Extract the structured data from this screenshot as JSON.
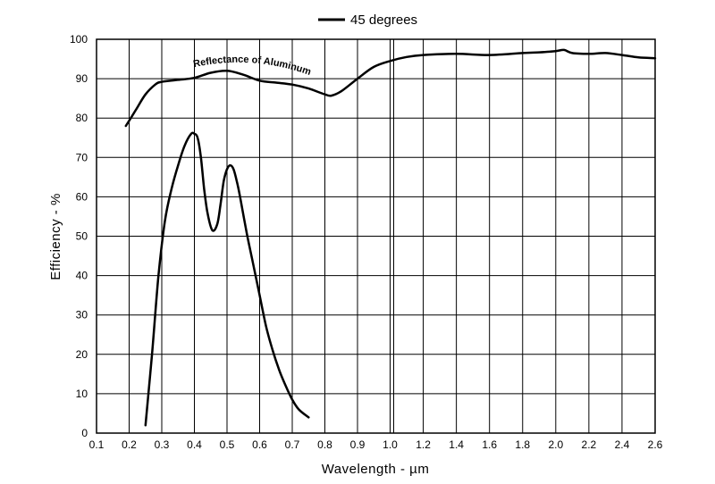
{
  "chart_data": {
    "type": "line",
    "title": "",
    "xlabel": "Wavelength - µm",
    "ylabel": "Efficiency - %",
    "ylim": [
      0,
      100
    ],
    "grid": true,
    "legend_position": "top-center",
    "x_tick_labels": [
      "0.1",
      "0.2",
      "0.3",
      "0.4",
      "0.5",
      "0.6",
      "0.7",
      "0.8",
      "0.9",
      "1.0",
      "1.2",
      "1.4",
      "1.6",
      "1.8",
      "2.0",
      "2.2",
      "2.4",
      "2.6"
    ],
    "x_axis_note": "piecewise axis: step 0.1 from 0.1 to 1.0, then step 0.2 from 1.0 to 2.6",
    "y_ticks": [
      0,
      10,
      20,
      30,
      40,
      50,
      60,
      70,
      80,
      90,
      100
    ],
    "legend": [
      {
        "label": "45 degrees",
        "series": "efficiency_45deg"
      }
    ],
    "annotations": [
      {
        "text": "Reflectance of Aluminum",
        "series": "reflectance_aluminum"
      }
    ],
    "series": [
      {
        "name": "efficiency_45deg",
        "label": "45 degrees",
        "x": [
          0.25,
          0.27,
          0.29,
          0.31,
          0.33,
          0.35,
          0.37,
          0.39,
          0.4,
          0.41,
          0.42,
          0.43,
          0.44,
          0.455,
          0.47,
          0.48,
          0.49,
          0.5,
          0.51,
          0.52,
          0.53,
          0.54,
          0.56,
          0.58,
          0.6,
          0.62,
          0.64,
          0.66,
          0.68,
          0.7,
          0.72,
          0.75
        ],
        "y": [
          2,
          20,
          40,
          54,
          62,
          68,
          73,
          76,
          76,
          75,
          70,
          62,
          56,
          51.5,
          53,
          58,
          64,
          67,
          68,
          67,
          64,
          60,
          51,
          43,
          35,
          27,
          21,
          16,
          12,
          8.5,
          6,
          4
        ]
      },
      {
        "name": "reflectance_aluminum",
        "label": "Reflectance of Aluminum",
        "x": [
          0.19,
          0.22,
          0.25,
          0.28,
          0.3,
          0.35,
          0.4,
          0.45,
          0.5,
          0.55,
          0.6,
          0.65,
          0.7,
          0.75,
          0.8,
          0.82,
          0.85,
          0.9,
          0.95,
          1.0,
          1.1,
          1.2,
          1.4,
          1.6,
          1.8,
          1.9,
          2.0,
          2.05,
          2.1,
          2.2,
          2.3,
          2.4,
          2.5,
          2.6
        ],
        "y": [
          78,
          82,
          86,
          88.5,
          89.2,
          89.7,
          90.2,
          91.5,
          92,
          91,
          89.5,
          89,
          88.5,
          87.5,
          86,
          85.7,
          86.8,
          90,
          93,
          94.5,
          95.5,
          96,
          96.3,
          96,
          96.5,
          96.7,
          97,
          97.3,
          96.5,
          96.3,
          96.5,
          96,
          95.4,
          95.2
        ]
      }
    ]
  }
}
